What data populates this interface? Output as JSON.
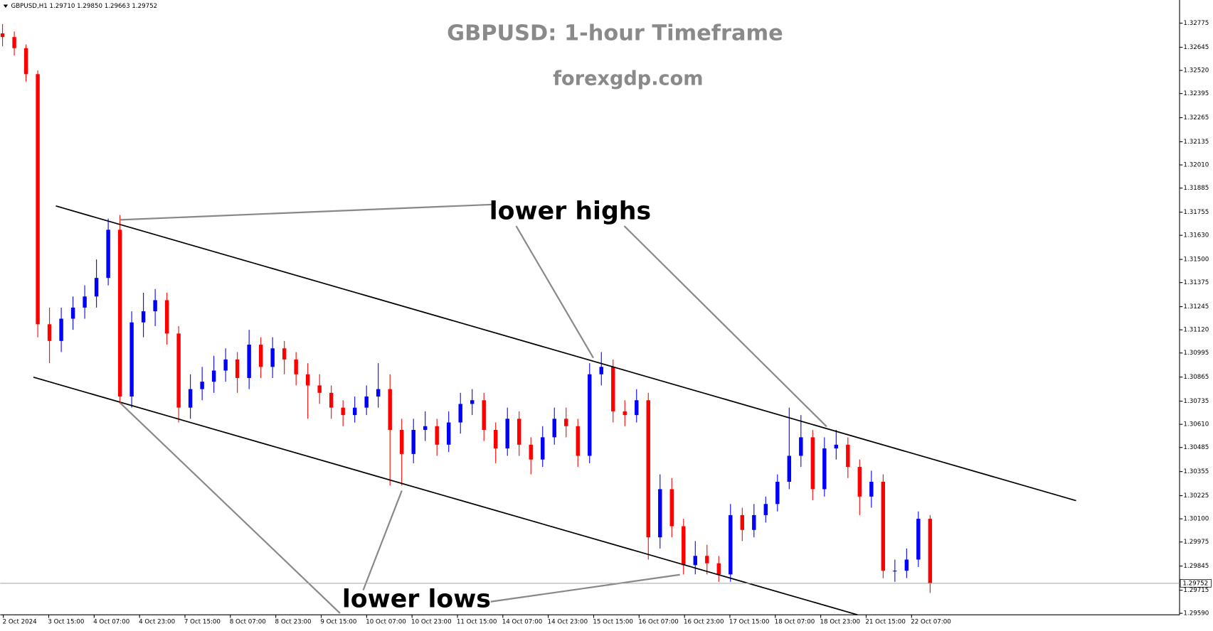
{
  "chart_data": {
    "type": "candlestick",
    "symbol_info": "GBPUSD,H1  1.29710 1.29850 1.29663 1.29752",
    "title": "GBPUSD: 1-hour Timeframe",
    "subtitle": "forexgdp.com",
    "annotations": [
      "lower highs",
      "lower lows"
    ],
    "up_color": "#0000ff",
    "down_color": "#ff0000",
    "last_price": 1.29752,
    "ylim": [
      1.29582,
      1.329
    ],
    "yticks": [
      1.32775,
      1.32645,
      {
        "value": 1.3252,
        "label": "1.32520"
      },
      1.32395,
      1.32265,
      1.32135,
      {
        "value": 1.3201,
        "label": "1.32010"
      },
      1.31885,
      1.31755,
      {
        "value": 1.3163,
        "label": "1.31630"
      },
      {
        "value": 1.315,
        "label": "1.31500"
      },
      1.31375,
      1.31245,
      {
        "value": 1.3112,
        "label": "1.31120"
      },
      1.30995,
      1.30865,
      1.30735,
      {
        "value": 1.3061,
        "label": "1.30610"
      },
      1.30485,
      1.30355,
      1.30225,
      {
        "value": 1.301,
        "label": "1.30100"
      },
      1.29975,
      1.29845,
      1.29715,
      {
        "value": 1.2959,
        "label": "1.29590"
      }
    ],
    "xtick_labels": [
      "2 Oct 2024",
      "3 Oct 15:00",
      "4 Oct 07:00",
      "4 Oct 23:00",
      "7 Oct 15:00",
      "8 Oct 07:00",
      "8 Oct 23:00",
      "9 Oct 15:00",
      "10 Oct 07:00",
      "10 Oct 23:00",
      "11 Oct 15:00",
      "14 Oct 07:00",
      "14 Oct 23:00",
      "15 Oct 15:00",
      "16 Oct 07:00",
      "16 Oct 23:00",
      "17 Oct 15:00",
      "18 Oct 07:00",
      "18 Oct 23:00",
      "21 Oct 15:00",
      "22 Oct 07:00"
    ],
    "ohlc": [
      [
        1.3272,
        1.3277,
        1.3265,
        1.327
      ],
      [
        1.327,
        1.3273,
        1.326,
        1.3264
      ],
      [
        1.3264,
        1.3266,
        1.3246,
        1.325
      ],
      [
        1.325,
        1.3252,
        1.3108,
        1.3115
      ],
      [
        1.3115,
        1.3124,
        1.3094,
        1.3106
      ],
      [
        1.3106,
        1.3124,
        1.31,
        1.3118
      ],
      [
        1.3118,
        1.313,
        1.3112,
        1.3124
      ],
      [
        1.3124,
        1.3136,
        1.3118,
        1.313
      ],
      [
        1.313,
        1.315,
        1.3124,
        1.314
      ],
      [
        1.314,
        1.3172,
        1.3136,
        1.3166
      ],
      [
        1.3166,
        1.3174,
        1.3072,
        1.3076
      ],
      [
        1.3076,
        1.3122,
        1.307,
        1.3116
      ],
      [
        1.3116,
        1.3132,
        1.3108,
        1.3122
      ],
      [
        1.3122,
        1.3134,
        1.3114,
        1.3128
      ],
      [
        1.3128,
        1.3132,
        1.3104,
        1.311
      ],
      [
        1.311,
        1.3114,
        1.3062,
        1.307
      ],
      [
        1.307,
        1.3088,
        1.3064,
        1.308
      ],
      [
        1.308,
        1.3092,
        1.3074,
        1.3084
      ],
      [
        1.3084,
        1.3098,
        1.3078,
        1.309
      ],
      [
        1.309,
        1.3102,
        1.3084,
        1.3096
      ],
      [
        1.3096,
        1.31,
        1.3078,
        1.3086
      ],
      [
        1.3086,
        1.3112,
        1.308,
        1.3104
      ],
      [
        1.3104,
        1.3108,
        1.3086,
        1.3092
      ],
      [
        1.3092,
        1.3108,
        1.3086,
        1.3102
      ],
      [
        1.3102,
        1.3106,
        1.3088,
        1.3096
      ],
      [
        1.3096,
        1.31,
        1.3082,
        1.3088
      ],
      [
        1.3088,
        1.3094,
        1.3064,
        1.3082
      ],
      [
        1.3082,
        1.3088,
        1.3072,
        1.3078
      ],
      [
        1.3078,
        1.3082,
        1.3064,
        1.307
      ],
      [
        1.307,
        1.3074,
        1.306,
        1.3066
      ],
      [
        1.3066,
        1.3076,
        1.3062,
        1.307
      ],
      [
        1.307,
        1.3082,
        1.3066,
        1.3076
      ],
      [
        1.3076,
        1.3094,
        1.307,
        1.308
      ],
      [
        1.308,
        1.3088,
        1.3028,
        1.3058
      ],
      [
        1.3058,
        1.3064,
        1.3028,
        1.3045
      ],
      [
        1.3045,
        1.3064,
        1.304,
        1.3058
      ],
      [
        1.3058,
        1.3068,
        1.3052,
        1.306
      ],
      [
        1.306,
        1.3064,
        1.3044,
        1.305
      ],
      [
        1.305,
        1.3068,
        1.3046,
        1.3062
      ],
      [
        1.3062,
        1.3078,
        1.3056,
        1.3072
      ],
      [
        1.3072,
        1.308,
        1.3066,
        1.3074
      ],
      [
        1.3074,
        1.3078,
        1.3052,
        1.3058
      ],
      [
        1.3058,
        1.3062,
        1.304,
        1.3048
      ],
      [
        1.3048,
        1.307,
        1.3044,
        1.3064
      ],
      [
        1.3064,
        1.3068,
        1.3044,
        1.305
      ],
      [
        1.305,
        1.3054,
        1.3034,
        1.3042
      ],
      [
        1.3042,
        1.306,
        1.3038,
        1.3054
      ],
      [
        1.3054,
        1.307,
        1.305,
        1.3064
      ],
      [
        1.3064,
        1.307,
        1.3054,
        1.306
      ],
      [
        1.306,
        1.3064,
        1.3038,
        1.3044
      ],
      [
        1.3044,
        1.3094,
        1.304,
        1.3088
      ],
      [
        1.3088,
        1.31,
        1.3082,
        1.3092
      ],
      [
        1.3092,
        1.3096,
        1.3062,
        1.3068
      ],
      [
        1.3068,
        1.3074,
        1.306,
        1.3066
      ],
      [
        1.3066,
        1.308,
        1.3062,
        1.3074
      ],
      [
        1.3074,
        1.3078,
        1.2988,
        1.3
      ],
      [
        1.3,
        1.3034,
        1.2994,
        1.3026
      ],
      [
        1.3026,
        1.3032,
        1.3,
        1.3006
      ],
      [
        1.3006,
        1.301,
        1.298,
        1.2985
      ],
      [
        1.2985,
        1.2998,
        1.298,
        1.299
      ],
      [
        1.299,
        1.2996,
        1.298,
        1.2986
      ],
      [
        1.2986,
        1.299,
        1.2976,
        1.298
      ],
      [
        1.298,
        1.3018,
        1.2976,
        1.3012
      ],
      [
        1.3012,
        1.3016,
        1.2998,
        1.3004
      ],
      [
        1.3004,
        1.3018,
        1.3,
        1.3012
      ],
      [
        1.3012,
        1.3022,
        1.3008,
        1.3018
      ],
      [
        1.3018,
        1.3034,
        1.3014,
        1.303
      ],
      [
        1.303,
        1.307,
        1.3026,
        1.3044
      ],
      [
        1.3044,
        1.3066,
        1.3038,
        1.3054
      ],
      [
        1.3054,
        1.3058,
        1.302,
        1.3026
      ],
      [
        1.3026,
        1.3054,
        1.3022,
        1.3048
      ],
      [
        1.3048,
        1.3058,
        1.3042,
        1.305
      ],
      [
        1.305,
        1.3054,
        1.3032,
        1.3038
      ],
      [
        1.3038,
        1.3042,
        1.3012,
        1.3022
      ],
      [
        1.3022,
        1.3036,
        1.3016,
        1.303
      ],
      [
        1.303,
        1.3034,
        1.2978,
        1.2982
      ],
      [
        1.2982,
        1.2988,
        1.2976,
        1.2982
      ],
      [
        1.2982,
        1.2994,
        1.2978,
        1.2988
      ],
      [
        1.2988,
        1.3014,
        1.2984,
        1.301
      ],
      [
        1.301,
        1.3012,
        1.297,
        1.29752
      ]
    ]
  }
}
